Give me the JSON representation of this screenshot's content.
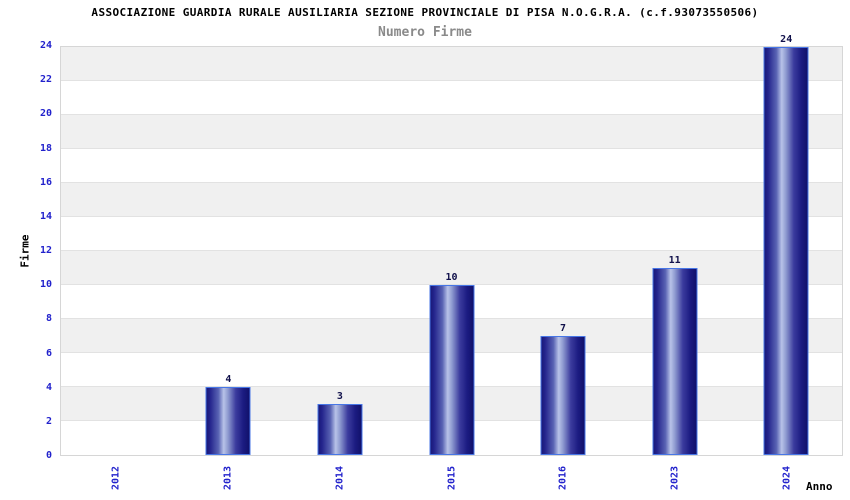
{
  "chart_title": "ASSOCIAZIONE GUARDIA RURALE AUSILIARIA SEZIONE PROVINCIALE DI PISA N.O.G.R.A. (c.f.93073550506)",
  "chart_subtitle": "Numero Firme",
  "chart_data": {
    "type": "bar",
    "title": "ASSOCIAZIONE GUARDIA RURALE AUSILIARIA SEZIONE PROVINCIALE DI PISA N.O.G.R.A. (c.f.93073550506)",
    "subtitle": "Numero Firme",
    "categories": [
      "2012",
      "2013",
      "2014",
      "2015",
      "2016",
      "2023",
      "2024"
    ],
    "values": [
      0,
      4,
      3,
      10,
      7,
      11,
      24
    ],
    "bar_value_labels": [
      "",
      "4",
      "3",
      "10",
      "7",
      "11",
      "24"
    ],
    "xlabel": "Anno",
    "ylabel": "Firme",
    "ylim": [
      0,
      24
    ],
    "ytick_step": 2,
    "yticks": [
      0,
      2,
      4,
      6,
      8,
      10,
      12,
      14,
      16,
      18,
      20,
      22,
      24
    ],
    "grid": "horizontal alternating bands every 2 units",
    "legend_position": "none",
    "colors": {
      "tick_label": "#2222cc",
      "title": "#000000",
      "subtitle": "#8a8a8a",
      "value_label": "#10104a",
      "bar_border": "#4776e6",
      "bar_gradient_dark": "#14147a",
      "bar_gradient_light": "#b8c3e8",
      "band_gray": "#f0f0f0",
      "band_white": "#ffffff",
      "grid_line": "#e2e2e2",
      "plot_border": "#d6d6d6"
    }
  }
}
